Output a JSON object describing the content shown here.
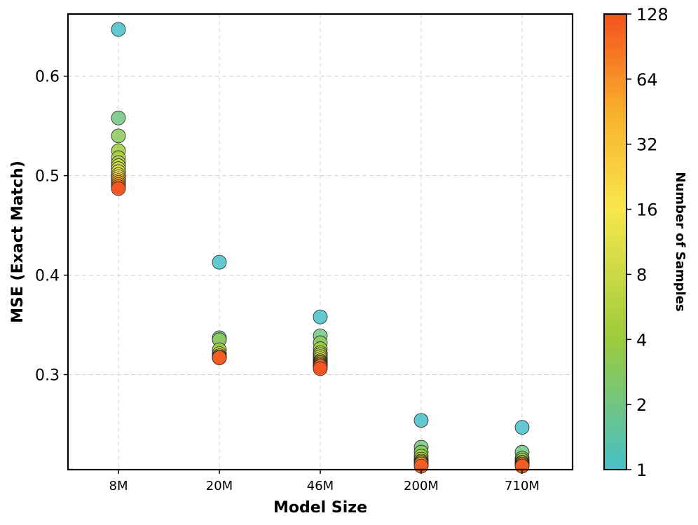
{
  "chart_data": {
    "type": "scatter",
    "xlabel": "Model Size",
    "ylabel": "MSE (Exact Match)",
    "categories": [
      "8M",
      "20M",
      "46M",
      "200M",
      "710M"
    ],
    "yticks": [
      0.3,
      0.4,
      0.5,
      0.6
    ],
    "ytick_labels": [
      "0.3",
      "0.4",
      "0.5",
      "0.6"
    ],
    "ylim": [
      0.2045,
      0.6625
    ],
    "grid": true,
    "colorbar": {
      "label": "Number of Samples",
      "scale": "log2",
      "min": 1,
      "max": 128,
      "ticks": [
        1,
        2,
        4,
        8,
        16,
        32,
        64,
        128
      ],
      "tick_labels": [
        "1",
        "2",
        "4",
        "8",
        "16",
        "32",
        "64",
        "128"
      ],
      "colors": [
        "#46bfc8",
        "#9ccb3c",
        "#f8e64c",
        "#f4511e"
      ]
    },
    "points_by_category": [
      {
        "category": "8M",
        "samples": [
          1,
          2,
          3,
          4,
          5,
          6,
          7,
          8,
          10,
          12,
          16,
          24,
          32,
          48,
          64,
          96,
          128
        ],
        "mse": [
          0.647,
          0.558,
          0.54,
          0.525,
          0.518,
          0.513,
          0.51,
          0.507,
          0.504,
          0.501,
          0.499,
          0.497,
          0.495,
          0.493,
          0.491,
          0.489,
          0.487
        ]
      },
      {
        "category": "20M",
        "samples": [
          1,
          2,
          3,
          4,
          8,
          16,
          32,
          64,
          128
        ],
        "mse": [
          0.413,
          0.337,
          0.335,
          0.325,
          0.321,
          0.319,
          0.318,
          0.317,
          0.317
        ]
      },
      {
        "category": "46M",
        "samples": [
          1,
          2,
          3,
          4,
          5,
          6,
          8,
          10,
          12,
          16,
          24,
          32,
          48,
          64,
          96,
          128
        ],
        "mse": [
          0.358,
          0.339,
          0.332,
          0.326,
          0.322,
          0.32,
          0.318,
          0.316,
          0.314,
          0.313,
          0.312,
          0.311,
          0.31,
          0.309,
          0.308,
          0.306
        ]
      },
      {
        "category": "200M",
        "samples": [
          1,
          2,
          3,
          4,
          6,
          8,
          16,
          32,
          64,
          128
        ],
        "mse": [
          0.254,
          0.227,
          0.222,
          0.218,
          0.215,
          0.213,
          0.212,
          0.211,
          0.21,
          0.208
        ]
      },
      {
        "category": "710M",
        "samples": [
          1,
          2,
          3,
          4,
          8,
          16,
          32,
          64,
          128
        ],
        "mse": [
          0.247,
          0.222,
          0.216,
          0.214,
          0.212,
          0.211,
          0.21,
          0.209,
          0.208
        ]
      }
    ]
  }
}
